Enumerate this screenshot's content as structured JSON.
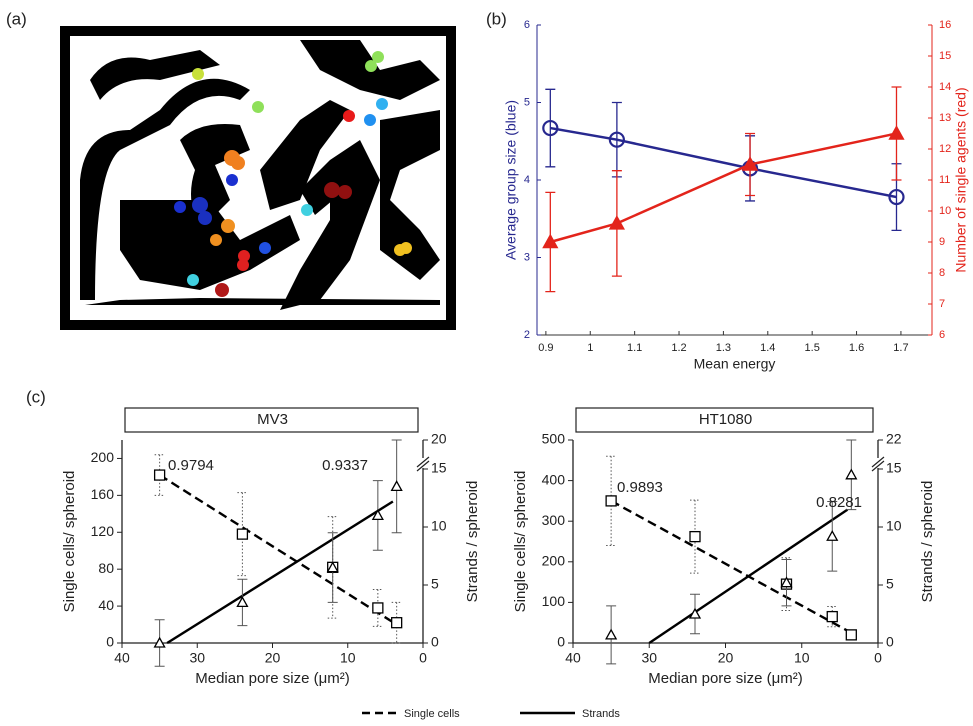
{
  "panel_labels": [
    "(a)",
    "(b)",
    "(c)"
  ],
  "chart_data": [
    {
      "type": "line",
      "x": [
        0.91,
        1.06,
        1.36,
        1.69
      ],
      "xlim": [
        0.88,
        1.77
      ],
      "xticks": [
        0.9,
        1,
        1.1,
        1.2,
        1.3,
        1.4,
        1.5,
        1.6,
        1.7
      ],
      "ylim": [
        2,
        6
      ],
      "yticks": [
        2,
        3,
        4,
        5,
        6
      ],
      "y2lim": [
        6,
        16
      ],
      "y2ticks": [
        6,
        7,
        8,
        9,
        10,
        11,
        12,
        13,
        14,
        15,
        16
      ],
      "xlabel": "Mean energy",
      "ylabel": "Average group size (blue)",
      "y2label": "Number of single agents (red)",
      "series": [
        {
          "color": "#27288f",
          "marker": "circle",
          "values": [
            4.67,
            4.52,
            4.15,
            3.78
          ],
          "errors": [
            0.5,
            0.48,
            0.42,
            0.43
          ]
        },
        {
          "color": "#e3241b",
          "marker": "triangle",
          "axis": "y2",
          "values": [
            9.0,
            9.6,
            11.5,
            12.5
          ],
          "errors": [
            1.6,
            1.7,
            1.0,
            1.5
          ]
        }
      ]
    },
    {
      "type": "scatter",
      "title": "MV3",
      "xlim": [
        40,
        0
      ],
      "xticks": [
        40,
        30,
        20,
        10,
        0
      ],
      "ylim": [
        0,
        220
      ],
      "yticks": [
        0,
        40,
        80,
        120,
        160,
        200
      ],
      "y2lim": [
        0,
        17.5
      ],
      "y2ticks": [
        0,
        5,
        10,
        15
      ],
      "y2_break_tick": 20,
      "xlabel": "Median pore size (μm²)",
      "ylabel": "Single cells/ spheroid",
      "y2label": "Strands / spheroid",
      "series": [
        {
          "name": "Single cells",
          "marker": "square",
          "line_style": "dashed",
          "error_style": "dotted",
          "color": "#000000",
          "x": [
            35,
            24,
            12,
            6,
            3.5
          ],
          "values": [
            182,
            118,
            82,
            38,
            22
          ],
          "errors": [
            22,
            45,
            55,
            20,
            22
          ],
          "fit": {
            "x": [
              35,
              3.5
            ],
            "y": [
              182,
              20
            ]
          },
          "r": 0.9794
        },
        {
          "name": "Strands",
          "marker": "triangle",
          "line_style": "solid",
          "error_style": "solid",
          "color": "#000000",
          "axis": "y2",
          "x": [
            35,
            24,
            12,
            6,
            3.5
          ],
          "values": [
            0,
            3.5,
            6.5,
            11,
            13.5
          ],
          "errors": [
            2,
            2,
            3,
            3,
            4
          ],
          "fit": {
            "x": [
              34,
              4
            ],
            "y": [
              0,
              12.2
            ]
          },
          "r": 0.9337
        }
      ]
    },
    {
      "type": "scatter",
      "title": "HT1080",
      "xlim": [
        40,
        0
      ],
      "xticks": [
        40,
        30,
        20,
        10,
        0
      ],
      "ylim": [
        0,
        500
      ],
      "yticks": [
        0,
        100,
        200,
        300,
        400,
        500
      ],
      "y2lim": [
        0,
        17.5
      ],
      "y2ticks": [
        0,
        5,
        10,
        15
      ],
      "y2_break_tick": 22,
      "xlabel": "Median pore size (μm²)",
      "ylabel": "Single cells/ spheroid",
      "y2label": "Strands / spheroid",
      "series": [
        {
          "marker": "square",
          "line_style": "dashed",
          "error_style": "dotted",
          "color": "#000000",
          "x": [
            35,
            24,
            12,
            6,
            3.5
          ],
          "values": [
            350,
            262,
            145,
            65,
            20
          ],
          "errors": [
            110,
            90,
            65,
            25,
            12
          ],
          "fit": {
            "x": [
              35,
              3.5
            ],
            "y": [
              350,
              25
            ]
          },
          "r": 0.9893
        },
        {
          "marker": "triangle",
          "line_style": "solid",
          "error_style": "solid",
          "color": "#000000",
          "axis": "y2",
          "x": [
            35,
            24,
            12,
            6,
            3.5
          ],
          "values": [
            0.7,
            2.5,
            5.2,
            9.2,
            14.5
          ],
          "errors": [
            2.5,
            1.7,
            2,
            3,
            3
          ],
          "fit": {
            "x": [
              30,
              4
            ],
            "y": [
              0,
              11.5
            ]
          },
          "r": 0.8281
        }
      ]
    }
  ]
}
